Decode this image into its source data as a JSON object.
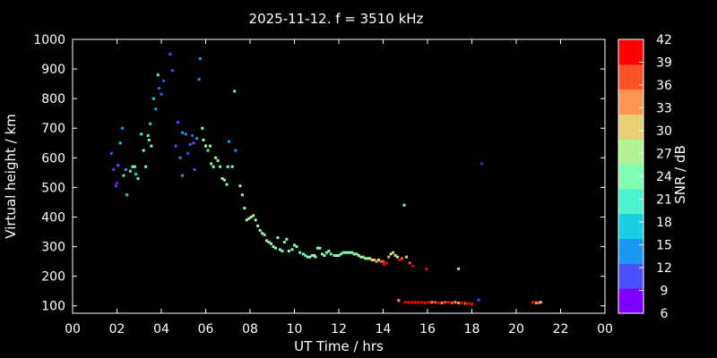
{
  "chart_data": {
    "type": "scatter",
    "title": "2025-11-12. f = 3510 kHz",
    "xlabel": "UT Time / hrs",
    "ylabel": "Virtual height / km",
    "xlim": [
      0,
      24
    ],
    "ylim": [
      75,
      1000
    ],
    "xticks": [
      "00",
      "02",
      "04",
      "06",
      "08",
      "10",
      "12",
      "14",
      "16",
      "18",
      "20",
      "22",
      "00"
    ],
    "yticks": [
      100,
      200,
      300,
      400,
      500,
      600,
      700,
      800,
      900,
      1000
    ],
    "colorbar": {
      "label": "SNR / dB",
      "ticks": [
        6,
        9,
        12,
        15,
        18,
        21,
        24,
        27,
        30,
        33,
        36,
        39,
        42
      ],
      "colors": [
        "#8000ff",
        "#4c50fc",
        "#1a96f3",
        "#19cfe2",
        "#4df3ce",
        "#80feb3",
        "#b3f396",
        "#e6cf74",
        "#ff964f",
        "#ff5026",
        "#ff0000"
      ]
    },
    "points": [
      [
        1.75,
        615,
        12
      ],
      [
        1.85,
        560,
        12
      ],
      [
        1.95,
        505,
        10
      ],
      [
        2.0,
        515,
        9
      ],
      [
        2.05,
        575,
        12
      ],
      [
        2.15,
        650,
        18
      ],
      [
        2.25,
        700,
        15
      ],
      [
        2.3,
        540,
        21
      ],
      [
        2.4,
        560,
        15
      ],
      [
        2.45,
        475,
        18
      ],
      [
        2.6,
        555,
        21
      ],
      [
        2.7,
        570,
        21
      ],
      [
        2.8,
        570,
        24
      ],
      [
        2.85,
        545,
        18
      ],
      [
        2.95,
        530,
        21
      ],
      [
        3.1,
        680,
        21
      ],
      [
        3.2,
        625,
        24
      ],
      [
        3.3,
        570,
        24
      ],
      [
        3.4,
        675,
        21
      ],
      [
        3.45,
        660,
        21
      ],
      [
        3.55,
        640,
        24
      ],
      [
        3.5,
        715,
        18
      ],
      [
        3.65,
        800,
        18
      ],
      [
        3.75,
        765,
        15
      ],
      [
        3.85,
        880,
        21
      ],
      [
        3.9,
        835,
        12
      ],
      [
        4.0,
        815,
        12
      ],
      [
        4.1,
        860,
        12
      ],
      [
        4.4,
        950,
        10
      ],
      [
        4.5,
        895,
        12
      ],
      [
        4.65,
        640,
        12
      ],
      [
        4.75,
        720,
        12
      ],
      [
        4.85,
        600,
        15
      ],
      [
        4.95,
        540,
        15
      ],
      [
        4.95,
        685,
        15
      ],
      [
        5.1,
        680,
        15
      ],
      [
        5.2,
        615,
        12
      ],
      [
        5.3,
        645,
        12
      ],
      [
        5.4,
        675,
        12
      ],
      [
        5.45,
        650,
        12
      ],
      [
        5.5,
        560,
        12
      ],
      [
        5.6,
        665,
        15
      ],
      [
        5.7,
        865,
        15
      ],
      [
        5.75,
        935,
        15
      ],
      [
        5.85,
        700,
        24
      ],
      [
        5.9,
        660,
        27
      ],
      [
        6.0,
        640,
        27
      ],
      [
        6.1,
        625,
        21
      ],
      [
        6.2,
        640,
        24
      ],
      [
        6.25,
        580,
        24
      ],
      [
        6.35,
        570,
        24
      ],
      [
        6.45,
        600,
        27
      ],
      [
        6.55,
        590,
        24
      ],
      [
        6.65,
        570,
        24
      ],
      [
        6.75,
        530,
        27
      ],
      [
        6.85,
        525,
        27
      ],
      [
        6.95,
        510,
        24
      ],
      [
        7.0,
        570,
        24
      ],
      [
        7.05,
        655,
        15
      ],
      [
        7.2,
        570,
        24
      ],
      [
        7.3,
        825,
        21
      ],
      [
        7.35,
        625,
        15
      ],
      [
        7.55,
        505,
        27
      ],
      [
        7.65,
        475,
        27
      ],
      [
        7.75,
        430,
        24
      ],
      [
        7.85,
        390,
        27
      ],
      [
        7.95,
        395,
        27
      ],
      [
        8.05,
        400,
        27
      ],
      [
        8.15,
        405,
        27
      ],
      [
        8.25,
        390,
        24
      ],
      [
        8.35,
        370,
        24
      ],
      [
        8.45,
        355,
        24
      ],
      [
        8.55,
        345,
        24
      ],
      [
        8.65,
        340,
        24
      ],
      [
        8.75,
        320,
        27
      ],
      [
        8.85,
        315,
        24
      ],
      [
        8.95,
        310,
        27
      ],
      [
        9.05,
        300,
        24
      ],
      [
        9.15,
        295,
        24
      ],
      [
        9.25,
        330,
        24
      ],
      [
        9.35,
        290,
        24
      ],
      [
        9.45,
        285,
        24
      ],
      [
        9.55,
        315,
        24
      ],
      [
        9.65,
        325,
        24
      ],
      [
        9.75,
        285,
        27
      ],
      [
        9.9,
        290,
        24
      ],
      [
        10.0,
        305,
        24
      ],
      [
        10.1,
        300,
        24
      ],
      [
        10.25,
        280,
        24
      ],
      [
        10.4,
        275,
        24
      ],
      [
        10.5,
        270,
        21
      ],
      [
        10.6,
        265,
        24
      ],
      [
        10.7,
        265,
        24
      ],
      [
        10.8,
        270,
        24
      ],
      [
        10.9,
        270,
        24
      ],
      [
        10.95,
        265,
        24
      ],
      [
        11.05,
        295,
        24
      ],
      [
        11.15,
        295,
        24
      ],
      [
        11.25,
        275,
        24
      ],
      [
        11.35,
        270,
        24
      ],
      [
        11.45,
        280,
        24
      ],
      [
        11.55,
        285,
        24
      ],
      [
        11.65,
        275,
        24
      ],
      [
        11.8,
        270,
        24
      ],
      [
        11.9,
        270,
        24
      ],
      [
        12.0,
        270,
        24
      ],
      [
        12.1,
        275,
        24
      ],
      [
        12.2,
        280,
        24
      ],
      [
        12.3,
        280,
        24
      ],
      [
        12.4,
        280,
        24
      ],
      [
        12.5,
        280,
        24
      ],
      [
        12.6,
        280,
        24
      ],
      [
        12.7,
        275,
        24
      ],
      [
        12.8,
        275,
        24
      ],
      [
        12.9,
        270,
        24
      ],
      [
        13.0,
        265,
        27
      ],
      [
        13.1,
        265,
        24
      ],
      [
        13.2,
        260,
        24
      ],
      [
        13.3,
        260,
        27
      ],
      [
        13.4,
        260,
        27
      ],
      [
        13.5,
        255,
        30
      ],
      [
        13.6,
        255,
        30
      ],
      [
        13.7,
        250,
        33
      ],
      [
        13.8,
        255,
        27
      ],
      [
        13.9,
        250,
        36
      ],
      [
        14.0,
        250,
        36
      ],
      [
        14.05,
        240,
        39
      ],
      [
        14.15,
        245,
        39
      ],
      [
        14.25,
        265,
        33
      ],
      [
        14.35,
        275,
        27
      ],
      [
        14.45,
        280,
        30
      ],
      [
        14.55,
        270,
        27
      ],
      [
        14.65,
        265,
        27
      ],
      [
        14.75,
        255,
        39
      ],
      [
        14.85,
        260,
        36
      ],
      [
        14.95,
        440,
        24
      ],
      [
        15.05,
        265,
        30
      ],
      [
        15.2,
        245,
        36
      ],
      [
        15.35,
        235,
        42
      ],
      [
        15.95,
        225,
        42
      ],
      [
        17.4,
        225,
        30
      ],
      [
        18.45,
        580,
        9
      ],
      [
        18.3,
        120,
        12
      ],
      [
        14.7,
        118,
        33
      ],
      [
        15.0,
        112,
        39
      ],
      [
        15.15,
        112,
        39
      ],
      [
        15.3,
        112,
        39
      ],
      [
        15.45,
        112,
        39
      ],
      [
        15.6,
        112,
        39
      ],
      [
        15.75,
        112,
        39
      ],
      [
        15.9,
        110,
        39
      ],
      [
        16.05,
        112,
        39
      ],
      [
        16.2,
        112,
        33
      ],
      [
        16.35,
        112,
        36
      ],
      [
        16.5,
        110,
        39
      ],
      [
        16.65,
        110,
        33
      ],
      [
        16.8,
        112,
        36
      ],
      [
        16.95,
        112,
        39
      ],
      [
        17.1,
        110,
        36
      ],
      [
        17.25,
        112,
        33
      ],
      [
        17.4,
        110,
        33
      ],
      [
        17.55,
        110,
        39
      ],
      [
        17.7,
        108,
        36
      ],
      [
        17.85,
        108,
        39
      ],
      [
        18.0,
        106,
        39
      ],
      [
        20.75,
        112,
        39
      ],
      [
        20.9,
        110,
        33
      ],
      [
        21.0,
        110,
        36
      ],
      [
        21.1,
        112,
        30
      ]
    ]
  }
}
